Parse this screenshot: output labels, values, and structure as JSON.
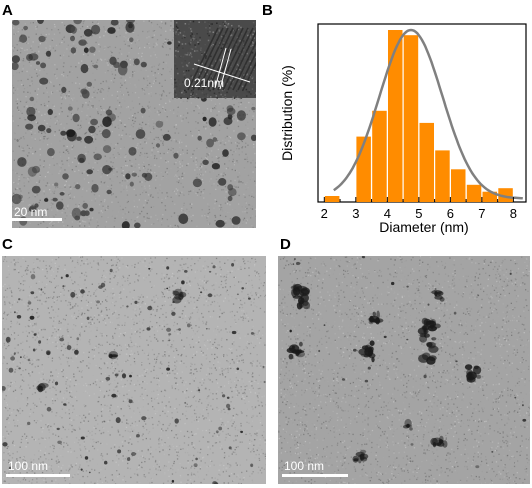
{
  "panels": {
    "a": {
      "letter": "A",
      "scale": "20 nm",
      "inset_label": "0.21nm"
    },
    "b": {
      "letter": "B"
    },
    "c": {
      "letter": "C",
      "scale": "100 nm"
    },
    "d": {
      "letter": "D",
      "scale": "100 nm"
    }
  },
  "chart_data": {
    "type": "bar",
    "xlabel": "Diameter (nm)",
    "ylabel": "Distribution (%)",
    "xlim": [
      1.8,
      8.4
    ],
    "ylim": [
      0,
      100
    ],
    "x_ticks": [
      2,
      3,
      4,
      5,
      6,
      7,
      8
    ],
    "bar_color": "#ff8c00",
    "curve_color": "#808080",
    "bars": [
      {
        "x": 2.25,
        "value": 3.5
      },
      {
        "x": 3.25,
        "value": 38
      },
      {
        "x": 3.75,
        "value": 53
      },
      {
        "x": 4.25,
        "value": 100
      },
      {
        "x": 4.75,
        "value": 97
      },
      {
        "x": 5.25,
        "value": 46
      },
      {
        "x": 5.75,
        "value": 30
      },
      {
        "x": 6.25,
        "value": 19
      },
      {
        "x": 6.75,
        "value": 10
      },
      {
        "x": 7.25,
        "value": 6
      },
      {
        "x": 7.75,
        "value": 8
      }
    ],
    "fit_curve": {
      "type": "gaussian",
      "mean": 4.75,
      "sigma": 1.0,
      "peak": 98,
      "offset": 2
    }
  }
}
